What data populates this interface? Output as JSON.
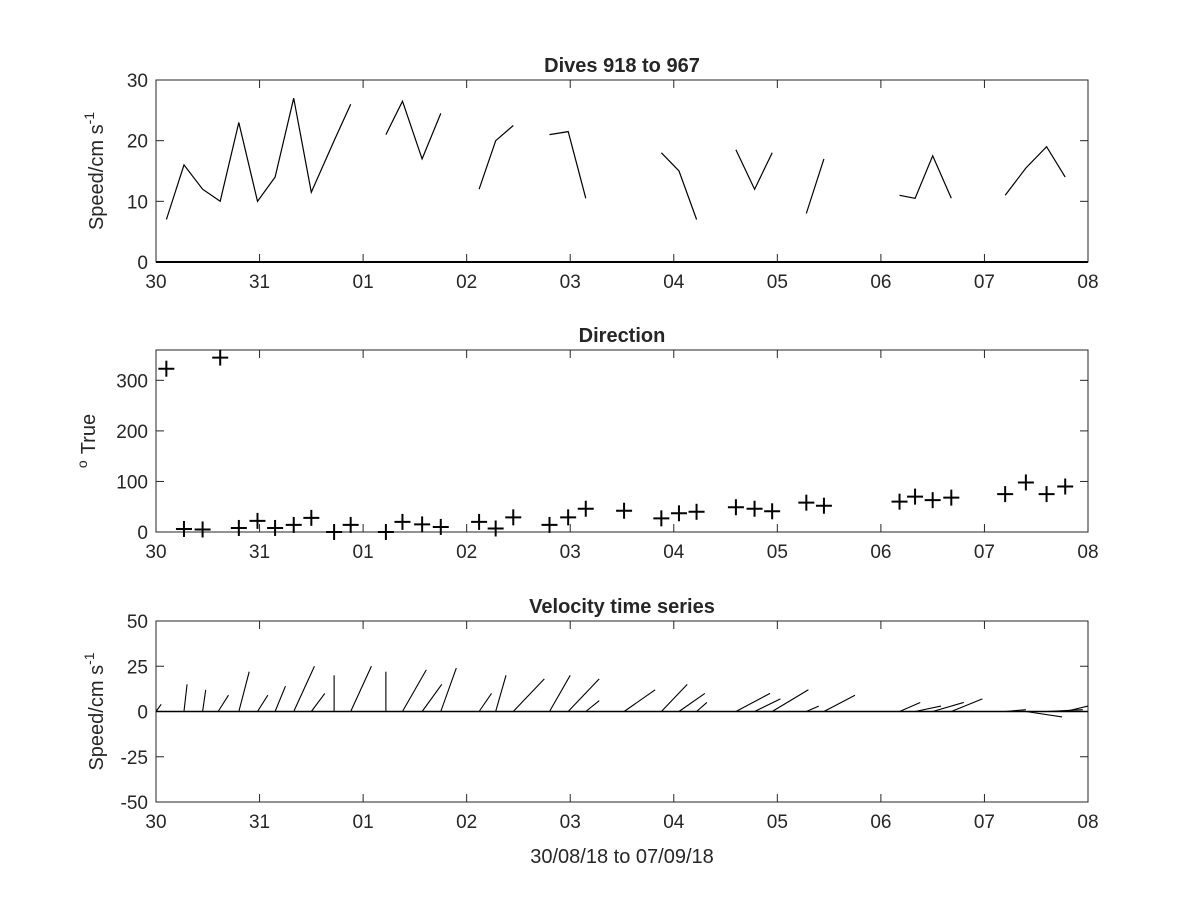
{
  "chart_data": [
    {
      "type": "line",
      "title": "Dives 918 to 967",
      "ylabel_main": "Speed/cm s",
      "ylabel_sup": "-1",
      "xlabel": "",
      "ylim": [
        0,
        30
      ],
      "yticks": [
        0,
        10,
        20,
        30
      ],
      "xlim": [
        0,
        9
      ],
      "xticks": [
        0,
        1,
        2,
        3,
        4,
        5,
        6,
        7,
        8,
        9
      ],
      "xticklabels": [
        "30",
        "31",
        "01",
        "02",
        "03",
        "04",
        "05",
        "06",
        "07",
        "08"
      ],
      "segments": [
        [
          [
            0.1,
            7
          ],
          [
            0.27,
            16
          ],
          [
            0.45,
            12
          ],
          [
            0.62,
            10
          ],
          [
            0.8,
            23
          ],
          [
            0.98,
            10
          ],
          [
            1.15,
            14
          ],
          [
            1.33,
            27
          ],
          [
            1.5,
            11.5
          ],
          [
            1.72,
            20
          ],
          [
            1.88,
            26
          ]
        ],
        [
          [
            2.22,
            21
          ],
          [
            2.38,
            26.5
          ],
          [
            2.57,
            17
          ],
          [
            2.75,
            24.5
          ]
        ],
        [
          [
            3.12,
            12
          ],
          [
            3.28,
            20
          ],
          [
            3.45,
            22.5
          ]
        ],
        [
          [
            3.8,
            21
          ],
          [
            3.98,
            21.5
          ],
          [
            4.15,
            10.5
          ]
        ],
        [
          [
            4.88,
            18
          ],
          [
            5.05,
            15
          ],
          [
            5.22,
            7
          ]
        ],
        [
          [
            5.6,
            18.5
          ],
          [
            5.78,
            12
          ],
          [
            5.95,
            18
          ]
        ],
        [
          [
            6.28,
            8
          ],
          [
            6.45,
            17
          ]
        ],
        [
          [
            7.18,
            11
          ],
          [
            7.33,
            10.5
          ],
          [
            7.5,
            17.5
          ],
          [
            7.68,
            10.5
          ]
        ],
        [
          [
            8.2,
            11
          ],
          [
            8.4,
            15.5
          ],
          [
            8.6,
            19
          ],
          [
            8.78,
            14
          ]
        ]
      ]
    },
    {
      "type": "scatter",
      "title": "Direction",
      "ylabel_sup": "o",
      "ylabel_main": "True",
      "ylim": [
        0,
        360
      ],
      "yticks": [
        0,
        100,
        200,
        300
      ],
      "xlim": [
        0,
        9
      ],
      "xticks": [
        0,
        1,
        2,
        3,
        4,
        5,
        6,
        7,
        8,
        9
      ],
      "xticklabels": [
        "30",
        "31",
        "01",
        "02",
        "03",
        "04",
        "05",
        "06",
        "07",
        "08"
      ],
      "x": [
        0.1,
        0.27,
        0.45,
        0.62,
        0.8,
        0.98,
        1.15,
        1.33,
        1.5,
        1.72,
        1.88,
        2.22,
        2.38,
        2.57,
        2.75,
        3.12,
        3.28,
        3.45,
        3.8,
        3.98,
        4.15,
        4.52,
        4.88,
        5.05,
        5.22,
        5.6,
        5.78,
        5.95,
        6.28,
        6.45,
        7.18,
        7.33,
        7.5,
        7.68,
        8.2,
        8.4,
        8.6,
        8.78
      ],
      "y": [
        323,
        6,
        5,
        345,
        8,
        22,
        8,
        14,
        28,
        0,
        14,
        0,
        20,
        15,
        10,
        20,
        7,
        29,
        14,
        29,
        46,
        42,
        27,
        37,
        40,
        49,
        46,
        41,
        58,
        52,
        60,
        70,
        63,
        68,
        75,
        98,
        75,
        90
      ]
    },
    {
      "type": "line",
      "title": "Velocity time series",
      "ylabel_main": "Speed/cm s",
      "ylabel_sup": "-1",
      "xlabel": "30/08/18 to 07/09/18",
      "ylim": [
        -50,
        50
      ],
      "yticks": [
        -50,
        -25,
        0,
        25,
        50
      ],
      "xlim": [
        0,
        9
      ],
      "xticks": [
        0,
        1,
        2,
        3,
        4,
        5,
        6,
        7,
        8,
        9
      ],
      "xticklabels": [
        "30",
        "31",
        "01",
        "02",
        "03",
        "04",
        "05",
        "06",
        "07",
        "08"
      ],
      "sticks": [
        {
          "x": 0.0,
          "dx": 0.05,
          "v": 4
        },
        {
          "x": 0.27,
          "dx": 0.03,
          "v": 15
        },
        {
          "x": 0.45,
          "dx": 0.03,
          "v": 12
        },
        {
          "x": 0.6,
          "dx": 0.1,
          "v": 9
        },
        {
          "x": 0.8,
          "dx": 0.1,
          "v": 22
        },
        {
          "x": 0.98,
          "dx": 0.1,
          "v": 9
        },
        {
          "x": 1.15,
          "dx": 0.1,
          "v": 14
        },
        {
          "x": 1.33,
          "dx": 0.2,
          "v": 25
        },
        {
          "x": 1.5,
          "dx": 0.13,
          "v": 10
        },
        {
          "x": 1.72,
          "dx": 0.0,
          "v": 20
        },
        {
          "x": 1.88,
          "dx": 0.2,
          "v": 25
        },
        {
          "x": 2.22,
          "dx": 0.0,
          "v": 22
        },
        {
          "x": 2.38,
          "dx": 0.23,
          "v": 23
        },
        {
          "x": 2.57,
          "dx": 0.19,
          "v": 15
        },
        {
          "x": 2.75,
          "dx": 0.15,
          "v": 24
        },
        {
          "x": 3.12,
          "dx": 0.12,
          "v": 10
        },
        {
          "x": 3.28,
          "dx": 0.1,
          "v": 20
        },
        {
          "x": 3.45,
          "dx": 0.3,
          "v": 18
        },
        {
          "x": 3.8,
          "dx": 0.2,
          "v": 20
        },
        {
          "x": 3.98,
          "dx": 0.3,
          "v": 18
        },
        {
          "x": 4.15,
          "dx": 0.13,
          "v": 6
        },
        {
          "x": 4.52,
          "dx": 0.3,
          "v": 12
        },
        {
          "x": 4.88,
          "dx": 0.25,
          "v": 15
        },
        {
          "x": 5.05,
          "dx": 0.25,
          "v": 10
        },
        {
          "x": 5.22,
          "dx": 0.1,
          "v": 5
        },
        {
          "x": 5.6,
          "dx": 0.33,
          "v": 10
        },
        {
          "x": 5.78,
          "dx": 0.25,
          "v": 7
        },
        {
          "x": 5.95,
          "dx": 0.35,
          "v": 12
        },
        {
          "x": 6.28,
          "dx": 0.12,
          "v": 3
        },
        {
          "x": 6.45,
          "dx": 0.3,
          "v": 9
        },
        {
          "x": 7.18,
          "dx": 0.2,
          "v": 5
        },
        {
          "x": 7.33,
          "dx": 0.25,
          "v": 3
        },
        {
          "x": 7.5,
          "dx": 0.3,
          "v": 5
        },
        {
          "x": 7.68,
          "dx": 0.3,
          "v": 7
        },
        {
          "x": 8.2,
          "dx": 0.2,
          "v": 1
        },
        {
          "x": 8.4,
          "dx": 0.35,
          "v": -3
        },
        {
          "x": 8.6,
          "dx": 0.35,
          "v": 1
        },
        {
          "x": 8.78,
          "dx": 0.22,
          "v": 3
        }
      ]
    }
  ]
}
